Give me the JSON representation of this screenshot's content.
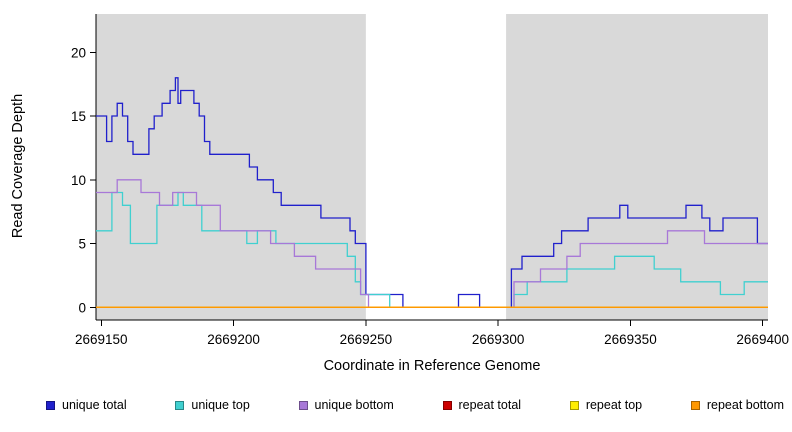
{
  "axes": {
    "x_label": "Coordinate in Reference Genome",
    "y_label": "Read Coverage Depth"
  },
  "colors": {
    "plot_shading": "#D9D9D9",
    "axis": "#000000",
    "background": "#FFFFFF"
  },
  "legend": [
    {
      "label": "unique total",
      "color": "#2020CC"
    },
    {
      "label": "unique top",
      "color": "#40D0D0"
    },
    {
      "label": "unique bottom",
      "color": "#A878D8"
    },
    {
      "label": "repeat total",
      "color": "#CC0000"
    },
    {
      "label": "repeat top",
      "color": "#FFEE00"
    },
    {
      "label": "repeat bottom",
      "color": "#FF9800"
    }
  ],
  "chart_data": {
    "type": "line",
    "step": true,
    "title": "",
    "xlabel": "Coordinate in Reference Genome",
    "ylabel": "Read Coverage Depth",
    "xlim": [
      2669148,
      2669402
    ],
    "ylim": [
      -1,
      23
    ],
    "xticks": [
      2669150,
      2669200,
      2669250,
      2669300,
      2669350,
      2669400
    ],
    "yticks": [
      0,
      5,
      10,
      15,
      20
    ],
    "grid": false,
    "legend_position": "bottom",
    "shaded_regions": [
      {
        "x0": 2669148,
        "x1": 2669250,
        "color": "#D9D9D9"
      },
      {
        "x0": 2669303,
        "x1": 2669402,
        "color": "#D9D9D9"
      }
    ],
    "series": [
      {
        "name": "unique total",
        "color": "#2020CC",
        "points": [
          [
            2669148,
            15
          ],
          [
            2669152,
            13
          ],
          [
            2669154,
            15
          ],
          [
            2669156,
            16
          ],
          [
            2669158,
            15
          ],
          [
            2669160,
            13
          ],
          [
            2669162,
            12
          ],
          [
            2669166,
            12
          ],
          [
            2669168,
            14
          ],
          [
            2669170,
            15
          ],
          [
            2669173,
            16
          ],
          [
            2669176,
            17
          ],
          [
            2669178,
            18
          ],
          [
            2669179,
            16
          ],
          [
            2669180,
            17
          ],
          [
            2669183,
            17
          ],
          [
            2669185,
            16
          ],
          [
            2669187,
            15
          ],
          [
            2669189,
            13
          ],
          [
            2669191,
            12
          ],
          [
            2669203,
            12
          ],
          [
            2669206,
            11
          ],
          [
            2669209,
            10
          ],
          [
            2669213,
            10
          ],
          [
            2669215,
            9
          ],
          [
            2669218,
            8
          ],
          [
            2669230,
            8
          ],
          [
            2669233,
            7
          ],
          [
            2669242,
            7
          ],
          [
            2669244,
            6
          ],
          [
            2669246,
            5
          ],
          [
            2669248,
            5
          ],
          [
            2669250,
            1
          ],
          [
            2669262,
            1
          ],
          [
            2669264,
            0
          ],
          [
            2669283,
            0
          ],
          [
            2669285,
            1
          ],
          [
            2669291,
            1
          ],
          [
            2669293,
            0
          ],
          [
            2669303,
            0
          ],
          [
            2669305,
            3
          ],
          [
            2669309,
            4
          ],
          [
            2669318,
            4
          ],
          [
            2669321,
            5
          ],
          [
            2669324,
            6
          ],
          [
            2669331,
            6
          ],
          [
            2669334,
            7
          ],
          [
            2669344,
            7
          ],
          [
            2669346,
            8
          ],
          [
            2669349,
            7
          ],
          [
            2669369,
            7
          ],
          [
            2669371,
            8
          ],
          [
            2669375,
            8
          ],
          [
            2669377,
            7
          ],
          [
            2669380,
            6
          ],
          [
            2669383,
            6
          ],
          [
            2669385,
            7
          ],
          [
            2669396,
            7
          ],
          [
            2669398,
            5
          ],
          [
            2669402,
            5
          ]
        ]
      },
      {
        "name": "unique top",
        "color": "#40D0D0",
        "points": [
          [
            2669148,
            6
          ],
          [
            2669152,
            6
          ],
          [
            2669154,
            9
          ],
          [
            2669158,
            8
          ],
          [
            2669161,
            5
          ],
          [
            2669168,
            5
          ],
          [
            2669171,
            8
          ],
          [
            2669176,
            8
          ],
          [
            2669179,
            9
          ],
          [
            2669181,
            8
          ],
          [
            2669186,
            8
          ],
          [
            2669188,
            6
          ],
          [
            2669202,
            6
          ],
          [
            2669205,
            5
          ],
          [
            2669209,
            6
          ],
          [
            2669214,
            6
          ],
          [
            2669216,
            5
          ],
          [
            2669240,
            5
          ],
          [
            2669243,
            4
          ],
          [
            2669246,
            2
          ],
          [
            2669248,
            1
          ],
          [
            2669257,
            1
          ],
          [
            2669259,
            0
          ],
          [
            2669304,
            0
          ],
          [
            2669306,
            1
          ],
          [
            2669311,
            2
          ],
          [
            2669322,
            2
          ],
          [
            2669326,
            3
          ],
          [
            2669341,
            3
          ],
          [
            2669344,
            4
          ],
          [
            2669356,
            4
          ],
          [
            2669359,
            3
          ],
          [
            2669366,
            3
          ],
          [
            2669369,
            2
          ],
          [
            2669381,
            2
          ],
          [
            2669384,
            1
          ],
          [
            2669391,
            1
          ],
          [
            2669393,
            2
          ],
          [
            2669402,
            2
          ]
        ]
      },
      {
        "name": "unique bottom",
        "color": "#A878D8",
        "points": [
          [
            2669148,
            9
          ],
          [
            2669154,
            9
          ],
          [
            2669156,
            10
          ],
          [
            2669163,
            10
          ],
          [
            2669165,
            9
          ],
          [
            2669172,
            8
          ],
          [
            2669177,
            9
          ],
          [
            2669184,
            9
          ],
          [
            2669186,
            8
          ],
          [
            2669192,
            8
          ],
          [
            2669195,
            6
          ],
          [
            2669211,
            6
          ],
          [
            2669214,
            5
          ],
          [
            2669221,
            5
          ],
          [
            2669223,
            4
          ],
          [
            2669229,
            4
          ],
          [
            2669231,
            3
          ],
          [
            2669246,
            3
          ],
          [
            2669248,
            1
          ],
          [
            2669251,
            0
          ],
          [
            2669304,
            0
          ],
          [
            2669306,
            2
          ],
          [
            2669314,
            2
          ],
          [
            2669316,
            3
          ],
          [
            2669323,
            3
          ],
          [
            2669326,
            4
          ],
          [
            2669329,
            4
          ],
          [
            2669331,
            5
          ],
          [
            2669362,
            5
          ],
          [
            2669364,
            6
          ],
          [
            2669376,
            6
          ],
          [
            2669378,
            5
          ],
          [
            2669402,
            5
          ]
        ]
      },
      {
        "name": "repeat total",
        "color": "#CC0000",
        "points": [
          [
            2669148,
            0
          ],
          [
            2669402,
            0
          ]
        ]
      },
      {
        "name": "repeat top",
        "color": "#FFEE00",
        "points": [
          [
            2669148,
            0
          ],
          [
            2669402,
            0
          ]
        ]
      },
      {
        "name": "repeat bottom",
        "color": "#FF9800",
        "points": [
          [
            2669148,
            0
          ],
          [
            2669402,
            0
          ]
        ]
      }
    ]
  }
}
